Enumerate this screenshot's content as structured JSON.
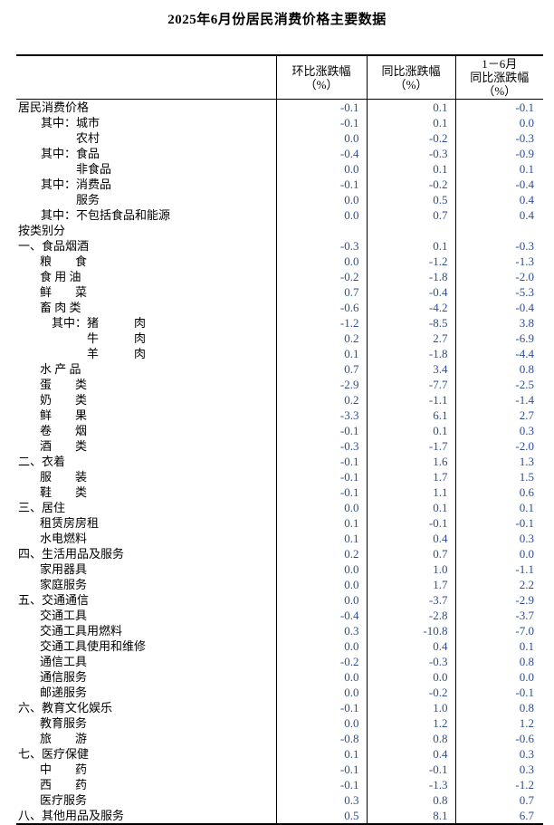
{
  "page": {
    "title": "2025年6月份居民消费价格主要数据",
    "background": "#ffffff",
    "text_color": "#000000",
    "value_color": "#2E4D8F"
  },
  "table": {
    "headers": [
      "环比涨跌幅\n（%）",
      "同比涨跌幅\n（%）",
      "1－6月\n同比涨跌幅\n（%）"
    ],
    "rows": [
      {
        "label": "居民消费价格",
        "indent": "l0",
        "values": [
          "-0.1",
          "0.1",
          "-0.1"
        ]
      },
      {
        "label": "其中：城市",
        "indent": "l1",
        "values": [
          "-0.1",
          "0.1",
          "0.0"
        ]
      },
      {
        "label": "农村",
        "indent": "l2",
        "values": [
          "0.0",
          "-0.2",
          "-0.3"
        ]
      },
      {
        "label": "其中：食品",
        "indent": "l1",
        "values": [
          "-0.4",
          "-0.3",
          "-0.9"
        ]
      },
      {
        "label": "非食品",
        "indent": "l2",
        "values": [
          "0.0",
          "0.1",
          "0.1"
        ]
      },
      {
        "label": "其中：消费品",
        "indent": "l1",
        "values": [
          "-0.1",
          "-0.2",
          "-0.4"
        ]
      },
      {
        "label": "服务",
        "indent": "l2",
        "values": [
          "0.0",
          "0.5",
          "0.4"
        ]
      },
      {
        "label": "其中：不包括食品和能源",
        "indent": "l1",
        "values": [
          "0.0",
          "0.7",
          "0.4"
        ]
      },
      {
        "label": "按类别分",
        "indent": "l0",
        "values": [
          "",
          "",
          ""
        ]
      },
      {
        "label": "一、食品烟酒",
        "indent": "l0",
        "values": [
          "-0.3",
          "0.1",
          "-0.3"
        ]
      },
      {
        "label": "粮　　食",
        "indent": "item",
        "values": [
          "0.0",
          "-1.2",
          "-1.3"
        ]
      },
      {
        "label": "食 用 油",
        "indent": "item",
        "values": [
          "-0.2",
          "-1.8",
          "-2.0"
        ]
      },
      {
        "label": "鲜　　菜",
        "indent": "item",
        "values": [
          "0.7",
          "-0.4",
          "-5.3"
        ]
      },
      {
        "label": "畜 肉 类",
        "indent": "item",
        "values": [
          "-0.6",
          "-4.2",
          "-0.4"
        ]
      },
      {
        "label": "其中：猪　　　肉",
        "indent": "qz",
        "values": [
          "-1.2",
          "-8.5",
          "3.8"
        ]
      },
      {
        "label": "牛　　　肉",
        "indent": "l3",
        "values": [
          "0.2",
          "2.7",
          "-6.9"
        ]
      },
      {
        "label": "羊　　　肉",
        "indent": "l3",
        "values": [
          "0.1",
          "-1.8",
          "-4.4"
        ]
      },
      {
        "label": "水 产 品",
        "indent": "item",
        "values": [
          "0.7",
          "3.4",
          "0.8"
        ]
      },
      {
        "label": "蛋　　类",
        "indent": "item",
        "values": [
          "-2.9",
          "-7.7",
          "-2.5"
        ]
      },
      {
        "label": "奶　　类",
        "indent": "item",
        "values": [
          "0.2",
          "-1.1",
          "-1.4"
        ]
      },
      {
        "label": "鲜　　果",
        "indent": "item",
        "values": [
          "-3.3",
          "6.1",
          "2.7"
        ]
      },
      {
        "label": "卷　　烟",
        "indent": "item",
        "values": [
          "-0.1",
          "0.1",
          "0.3"
        ]
      },
      {
        "label": "酒　　类",
        "indent": "item",
        "values": [
          "-0.3",
          "-1.7",
          "-2.0"
        ]
      },
      {
        "label": "二、衣着",
        "indent": "l0",
        "values": [
          "-0.1",
          "1.6",
          "1.3"
        ]
      },
      {
        "label": "服　　装",
        "indent": "item",
        "values": [
          "-0.1",
          "1.7",
          "1.5"
        ]
      },
      {
        "label": "鞋　　类",
        "indent": "item",
        "values": [
          "-0.1",
          "1.1",
          "0.6"
        ]
      },
      {
        "label": "三、居住",
        "indent": "l0",
        "values": [
          "0.0",
          "0.1",
          "0.1"
        ]
      },
      {
        "label": "租赁房房租",
        "indent": "item",
        "values": [
          "0.1",
          "-0.1",
          "-0.1"
        ]
      },
      {
        "label": "水电燃料",
        "indent": "item",
        "values": [
          "0.1",
          "0.4",
          "0.3"
        ]
      },
      {
        "label": "四、生活用品及服务",
        "indent": "l0",
        "values": [
          "0.2",
          "0.7",
          "0.0"
        ]
      },
      {
        "label": "家用器具",
        "indent": "item",
        "values": [
          "0.0",
          "1.0",
          "-1.1"
        ]
      },
      {
        "label": "家庭服务",
        "indent": "item",
        "values": [
          "0.0",
          "1.7",
          "2.2"
        ]
      },
      {
        "label": "五、交通通信",
        "indent": "l0",
        "values": [
          "0.0",
          "-3.7",
          "-2.9"
        ]
      },
      {
        "label": "交通工具",
        "indent": "item",
        "values": [
          "-0.4",
          "-2.8",
          "-3.7"
        ]
      },
      {
        "label": "交通工具用燃料",
        "indent": "item",
        "values": [
          "0.3",
          "-10.8",
          "-7.0"
        ]
      },
      {
        "label": "交通工具使用和维修",
        "indent": "item",
        "values": [
          "0.0",
          "0.4",
          "0.1"
        ]
      },
      {
        "label": "通信工具",
        "indent": "item",
        "values": [
          "-0.2",
          "-0.3",
          "0.8"
        ]
      },
      {
        "label": "通信服务",
        "indent": "item",
        "values": [
          "0.0",
          "0.0",
          "0.0"
        ]
      },
      {
        "label": "邮递服务",
        "indent": "item",
        "values": [
          "0.0",
          "-0.2",
          "-0.1"
        ]
      },
      {
        "label": "六、教育文化娱乐",
        "indent": "l0",
        "values": [
          "-0.1",
          "1.0",
          "0.8"
        ]
      },
      {
        "label": "教育服务",
        "indent": "item",
        "values": [
          "0.0",
          "1.2",
          "1.2"
        ]
      },
      {
        "label": "旅　　游",
        "indent": "item",
        "values": [
          "-0.8",
          "0.8",
          "-0.6"
        ]
      },
      {
        "label": "七、医疗保健",
        "indent": "l0",
        "values": [
          "0.1",
          "0.4",
          "0.3"
        ]
      },
      {
        "label": "中　　药",
        "indent": "item",
        "values": [
          "-0.1",
          "-0.1",
          "0.3"
        ]
      },
      {
        "label": "西　　药",
        "indent": "item",
        "values": [
          "-0.1",
          "-1.3",
          "-1.2"
        ]
      },
      {
        "label": "医疗服务",
        "indent": "item",
        "values": [
          "0.3",
          "0.8",
          "0.7"
        ]
      },
      {
        "label": "八、其他用品及服务",
        "indent": "l0",
        "values": [
          "0.5",
          "8.1",
          "6.7"
        ]
      }
    ]
  }
}
